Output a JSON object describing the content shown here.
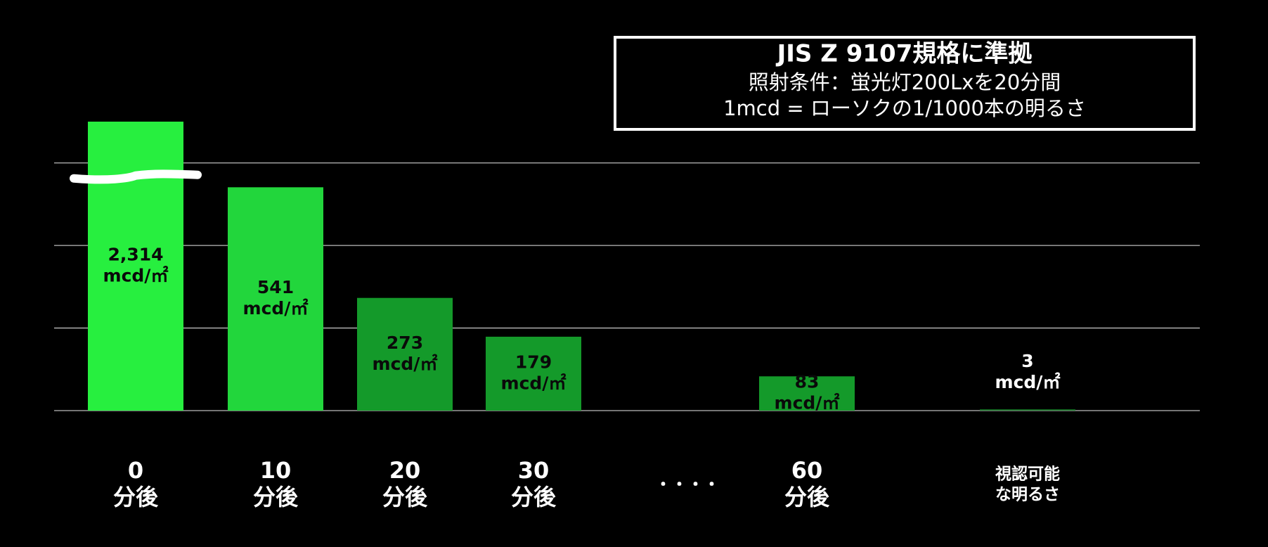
{
  "chart_data": {
    "type": "bar",
    "legend_box": {
      "title": "JIS Z 9107規格に準拠",
      "lines": [
        "照射条件：蛍光灯200Lxを20分間",
        "1mcd = ローソクの1/1000本の明るさ"
      ]
    },
    "categories": [
      [
        "0",
        "分後"
      ],
      [
        "10",
        "分後"
      ],
      [
        "20",
        "分後"
      ],
      [
        "30",
        "分後"
      ],
      [
        "・・・・"
      ],
      [
        "60",
        "分後"
      ],
      [
        "視認可能",
        "な明るさ"
      ]
    ],
    "values": [
      2314,
      541,
      273,
      179,
      null,
      83,
      3
    ],
    "value_labels": [
      "2,314",
      "541",
      "273",
      "179",
      null,
      "83",
      "3"
    ],
    "unit_label": "mcd/㎡",
    "colors": [
      "#27ef3f",
      "#22d63c",
      "#149a2a",
      "#149a2a",
      null,
      "#149a2a",
      "#1a7f2b"
    ],
    "ylim": [
      0,
      700
    ],
    "yticks": [
      0,
      200,
      400,
      600
    ],
    "grid": true,
    "axis_break": true
  }
}
